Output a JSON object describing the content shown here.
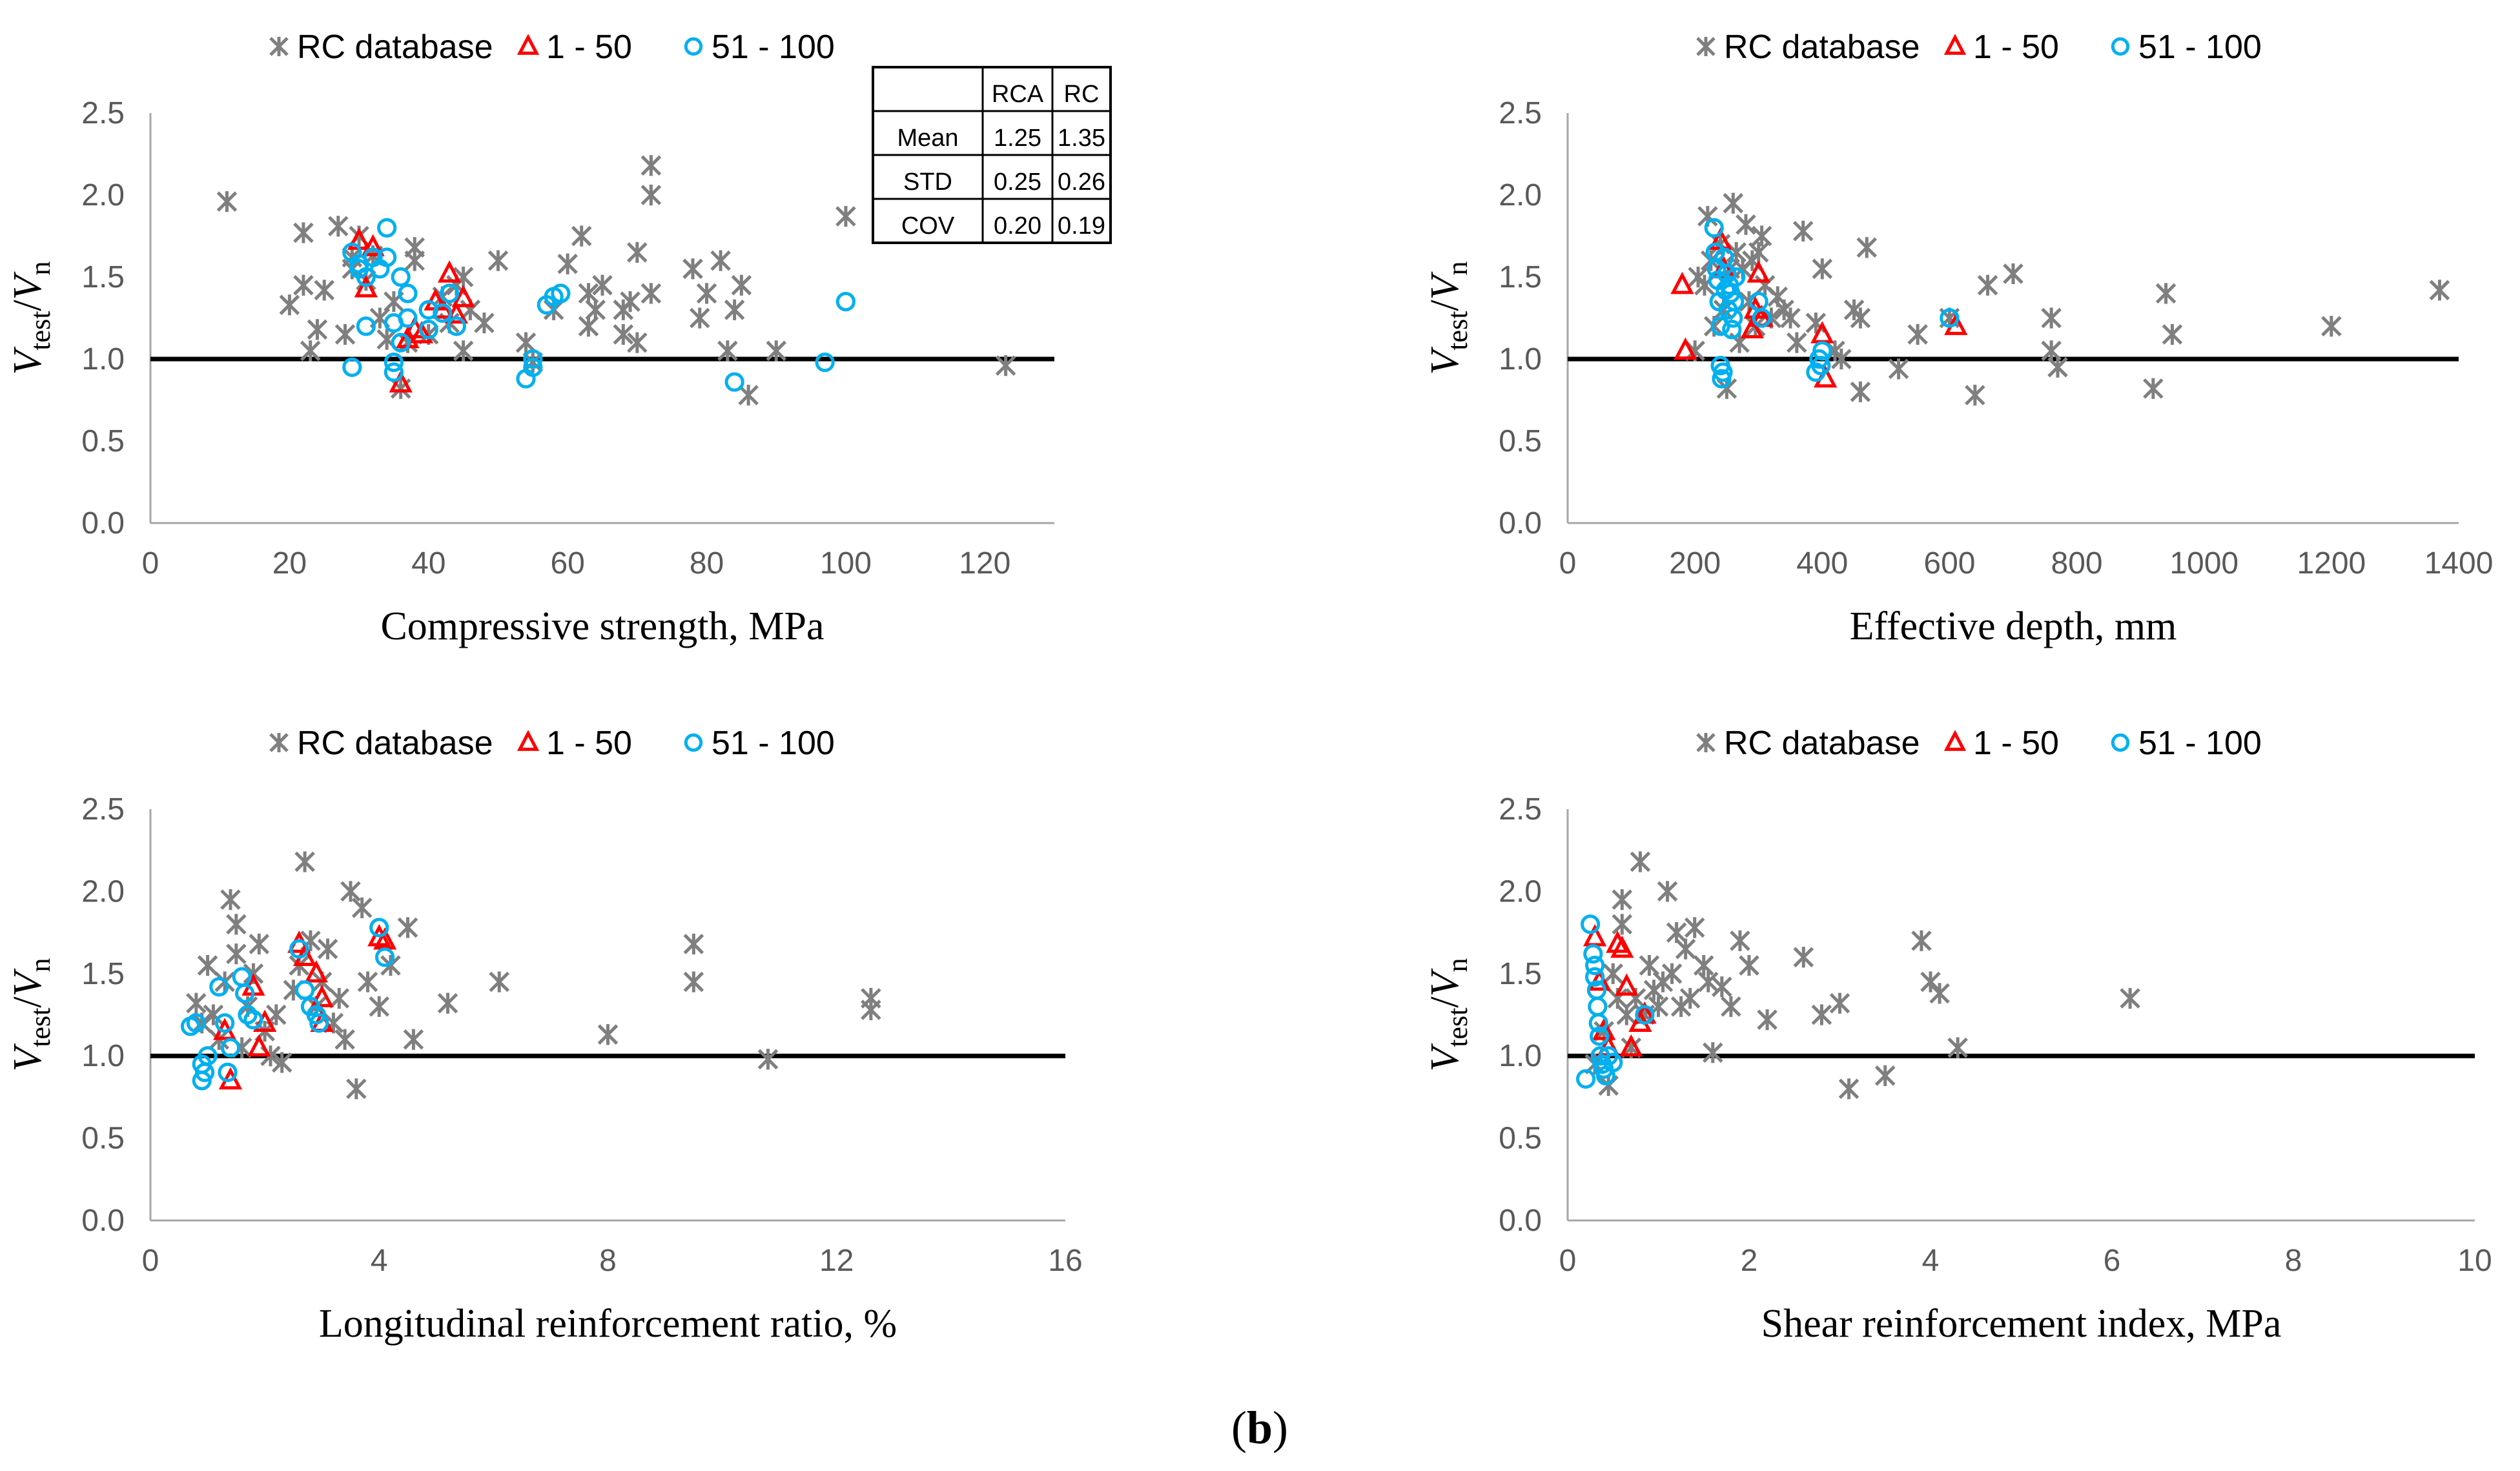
{
  "caption": {
    "prefix": "(",
    "letter": "b",
    "suffix": ")"
  },
  "colors": {
    "rc": "#7f7f7f",
    "rca_1_50": "#ff0000",
    "rca_51_100": "#00b0f0",
    "reference_line": "#000000"
  },
  "legend": {
    "rc": "RC database",
    "s1": "1 - 50",
    "s2": "51 - 100"
  },
  "ylabel": {
    "main": "V",
    "sub": "test",
    "sep": "/",
    "main2": "V",
    "sub2": "n"
  },
  "stats_table": {
    "headers": [
      "",
      "RCA",
      "RC"
    ],
    "rows": [
      {
        "label": "Mean",
        "rca": "1.25",
        "rc": "1.35"
      },
      {
        "label": "STD",
        "rca": "0.25",
        "rc": "0.26"
      },
      {
        "label": "COV",
        "rca": "0.20",
        "rc": "0.19"
      }
    ]
  },
  "chart_data": [
    {
      "type": "scatter",
      "xlabel": "Compressive strength, MPa",
      "xlim": [
        0,
        130
      ],
      "xticks": [
        0,
        20,
        40,
        60,
        80,
        100,
        120
      ],
      "ylim": [
        0,
        2.5
      ],
      "yticks": [
        0.0,
        0.5,
        1.0,
        1.5,
        2.0,
        2.5
      ],
      "reference_y": 1.0,
      "series": [
        {
          "name": "RC database",
          "marker": "asterisk",
          "x": [
            11,
            20,
            22,
            22,
            23,
            24,
            25,
            27,
            28,
            29,
            29,
            30,
            31,
            32,
            33,
            34,
            35,
            36,
            37,
            38,
            38,
            40,
            42,
            43,
            44,
            45,
            45,
            46,
            48,
            50,
            54,
            55,
            58,
            60,
            62,
            63,
            63,
            64,
            65,
            68,
            68,
            69,
            70,
            70,
            72,
            72,
            72,
            78,
            79,
            80,
            82,
            83,
            84,
            85,
            86,
            90,
            100,
            123
          ],
          "y": [
            1.96,
            1.33,
            1.45,
            1.77,
            1.05,
            1.18,
            1.42,
            1.81,
            1.15,
            1.62,
            1.55,
            1.75,
            1.48,
            1.63,
            1.25,
            1.12,
            1.35,
            0.82,
            1.1,
            1.6,
            1.68,
            1.15,
            1.38,
            1.22,
            1.45,
            1.05,
            1.5,
            1.3,
            1.22,
            1.6,
            1.1,
            0.98,
            1.3,
            1.58,
            1.75,
            1.4,
            1.2,
            1.3,
            1.45,
            1.3,
            1.15,
            1.35,
            1.65,
            1.1,
            1.4,
            2.18,
            2.0,
            1.55,
            1.25,
            1.4,
            1.6,
            1.05,
            1.3,
            1.45,
            0.78,
            1.05,
            1.87,
            0.96
          ]
        },
        {
          "name": "1 - 50",
          "marker": "triangle",
          "x": [
            30,
            31,
            32,
            36,
            37,
            38,
            39,
            41,
            42,
            43,
            44,
            45
          ],
          "y": [
            1.72,
            1.43,
            1.68,
            0.85,
            1.12,
            1.18,
            1.15,
            1.35,
            1.3,
            1.52,
            1.27,
            1.37
          ]
        },
        {
          "name": "51 - 100",
          "marker": "circle",
          "x": [
            29,
            29,
            30,
            30,
            31,
            31,
            32,
            33,
            34,
            34,
            35,
            35,
            35,
            36,
            36,
            37,
            37,
            40,
            40,
            42,
            43,
            44,
            54,
            55,
            55,
            57,
            58,
            59,
            84,
            97,
            100
          ],
          "y": [
            1.65,
            0.95,
            1.58,
            1.55,
            1.2,
            1.5,
            1.62,
            1.55,
            1.8,
            1.62,
            1.22,
            0.98,
            0.92,
            1.1,
            1.5,
            1.25,
            1.4,
            1.3,
            1.18,
            1.28,
            1.4,
            1.2,
            0.88,
            0.95,
            1.0,
            1.33,
            1.38,
            1.4,
            0.86,
            0.98,
            1.35
          ]
        }
      ]
    },
    {
      "type": "scatter",
      "xlabel": "Effective depth, mm",
      "xlim": [
        0,
        1400
      ],
      "xticks": [
        0,
        200,
        400,
        600,
        800,
        1000,
        1200,
        1400
      ],
      "ylim": [
        0,
        2.5
      ],
      "yticks": [
        0.0,
        0.5,
        1.0,
        1.5,
        2.0,
        2.5
      ],
      "reference_y": 1.0,
      "series": [
        {
          "name": "RC database",
          "marker": "asterisk",
          "x": [
            200,
            205,
            215,
            220,
            225,
            230,
            240,
            245,
            250,
            255,
            260,
            265,
            270,
            275,
            280,
            285,
            290,
            295,
            300,
            305,
            310,
            320,
            330,
            340,
            350,
            360,
            370,
            390,
            400,
            420,
            430,
            450,
            460,
            460,
            470,
            520,
            550,
            600,
            640,
            660,
            700,
            760,
            760,
            770,
            920,
            940,
            950,
            1200,
            1370
          ],
          "y": [
            1.05,
            1.5,
            1.45,
            1.87,
            1.6,
            1.2,
            1.7,
            1.3,
            0.82,
            1.55,
            1.95,
            1.65,
            1.1,
            1.55,
            1.82,
            1.35,
            1.6,
            1.2,
            1.65,
            1.75,
            1.45,
            1.25,
            1.38,
            1.3,
            1.25,
            1.1,
            1.78,
            1.22,
            1.55,
            1.05,
            1.0,
            1.3,
            1.25,
            0.8,
            1.68,
            0.94,
            1.15,
            1.25,
            0.78,
            1.45,
            1.52,
            1.25,
            1.05,
            0.95,
            0.82,
            1.4,
            1.15,
            1.2,
            1.42
          ]
        },
        {
          "name": "1 - 50",
          "marker": "triangle",
          "x": [
            180,
            185,
            240,
            245,
            290,
            295,
            300,
            305,
            400,
            405,
            610
          ],
          "y": [
            1.45,
            1.05,
            1.72,
            1.55,
            1.18,
            1.3,
            1.52,
            1.25,
            1.15,
            0.88,
            1.2
          ]
        },
        {
          "name": "51 - 100",
          "marker": "circle",
          "x": [
            230,
            232,
            234,
            236,
            238,
            240,
            240,
            242,
            244,
            246,
            248,
            250,
            252,
            254,
            256,
            258,
            260,
            262,
            264,
            300,
            305,
            390,
            395,
            398,
            400,
            600
          ],
          "y": [
            1.8,
            1.65,
            1.55,
            1.48,
            1.35,
            1.2,
            0.96,
            0.88,
            0.92,
            1.62,
            1.42,
            1.52,
            1.3,
            1.45,
            1.4,
            1.18,
            1.25,
            1.35,
            1.5,
            1.35,
            1.25,
            0.92,
            1.0,
            0.96,
            1.05,
            1.25
          ]
        }
      ]
    },
    {
      "type": "scatter",
      "xlabel": "Longitudinal reinforcement ratio, %",
      "xlim": [
        0,
        16
      ],
      "xticks": [
        0,
        4,
        8,
        12,
        16
      ],
      "ylim": [
        0,
        2.5
      ],
      "yticks": [
        0.0,
        0.5,
        1.0,
        1.5,
        2.0,
        2.5
      ],
      "reference_y": 1.0,
      "series": [
        {
          "name": "RC database",
          "marker": "asterisk",
          "x": [
            0.8,
            0.9,
            1.0,
            1.1,
            1.2,
            1.3,
            1.4,
            1.5,
            1.5,
            1.6,
            1.7,
            1.8,
            1.9,
            2.0,
            2.1,
            2.2,
            2.3,
            2.5,
            2.6,
            2.7,
            2.8,
            2.9,
            3.0,
            3.1,
            3.2,
            3.3,
            3.4,
            3.5,
            3.6,
            3.7,
            3.8,
            4.0,
            4.2,
            4.5,
            4.6,
            5.2,
            6.1,
            8.0,
            9.5,
            9.5,
            10.8,
            12.6,
            12.6
          ],
          "y": [
            1.32,
            1.2,
            1.55,
            1.25,
            1.1,
            1.45,
            1.95,
            1.8,
            1.62,
            1.05,
            1.3,
            1.5,
            1.68,
            1.15,
            1.0,
            1.25,
            0.96,
            1.4,
            1.55,
            2.18,
            1.7,
            1.3,
            1.45,
            1.65,
            1.2,
            1.35,
            1.1,
            2.0,
            0.8,
            1.9,
            1.45,
            1.3,
            1.55,
            1.78,
            1.1,
            1.32,
            1.45,
            1.13,
            1.45,
            1.68,
            0.98,
            1.35,
            1.28
          ]
        },
        {
          "name": "1 - 50",
          "marker": "triangle",
          "x": [
            1.3,
            1.4,
            1.8,
            1.9,
            2.0,
            2.6,
            2.7,
            2.9,
            3.0,
            3.0,
            4.0,
            4.1
          ],
          "y": [
            1.15,
            0.85,
            1.42,
            1.05,
            1.2,
            1.68,
            1.6,
            1.5,
            1.2,
            1.35,
            1.72,
            1.7
          ]
        },
        {
          "name": "51 - 100",
          "marker": "circle",
          "x": [
            0.7,
            0.8,
            0.9,
            0.9,
            0.95,
            1.0,
            1.2,
            1.3,
            1.35,
            1.4,
            1.6,
            1.65,
            1.7,
            1.8,
            2.6,
            2.7,
            2.8,
            2.9,
            2.95,
            4.0,
            4.1
          ],
          "y": [
            1.18,
            1.2,
            0.85,
            0.95,
            0.9,
            1.0,
            1.42,
            1.2,
            0.9,
            1.05,
            1.48,
            1.38,
            1.25,
            1.22,
            1.65,
            1.4,
            1.3,
            1.25,
            1.2,
            1.78,
            1.6
          ]
        }
      ]
    },
    {
      "type": "scatter",
      "xlabel": "Shear reinforcement index, MPa",
      "xlim": [
        0,
        10
      ],
      "xticks": [
        0,
        2,
        4,
        6,
        8,
        10
      ],
      "ylim": [
        0,
        2.5
      ],
      "yticks": [
        0.0,
        0.5,
        1.0,
        1.5,
        2.0,
        2.5
      ],
      "reference_y": 1.0,
      "series": [
        {
          "name": "RC database",
          "marker": "asterisk",
          "x": [
            0.3,
            0.4,
            0.45,
            0.5,
            0.55,
            0.6,
            0.6,
            0.65,
            0.7,
            0.75,
            0.8,
            0.85,
            0.9,
            0.95,
            1.0,
            1.05,
            1.1,
            1.15,
            1.2,
            1.25,
            1.3,
            1.35,
            1.4,
            1.5,
            1.55,
            1.6,
            1.7,
            1.8,
            1.9,
            2.0,
            2.2,
            2.6,
            2.8,
            3.0,
            3.1,
            3.5,
            3.9,
            4.0,
            4.1,
            4.3,
            6.2
          ],
          "y": [
            0.95,
            1.15,
            0.82,
            1.5,
            1.35,
            1.95,
            1.8,
            1.25,
            1.05,
            1.35,
            2.18,
            1.25,
            1.55,
            1.4,
            1.3,
            1.45,
            2.0,
            1.5,
            1.75,
            1.3,
            1.65,
            1.35,
            1.78,
            1.55,
            1.45,
            1.02,
            1.42,
            1.3,
            1.7,
            1.55,
            1.22,
            1.6,
            1.25,
            1.32,
            0.8,
            0.88,
            1.7,
            1.45,
            1.38,
            1.05,
            1.35
          ]
        },
        {
          "name": "1 - 50",
          "marker": "triangle",
          "x": [
            0.3,
            0.35,
            0.4,
            0.45,
            0.55,
            0.6,
            0.65,
            0.7,
            0.8,
            0.85
          ],
          "y": [
            1.72,
            1.45,
            1.15,
            1.05,
            1.68,
            1.65,
            1.42,
            1.05,
            1.2,
            1.25
          ]
        },
        {
          "name": "51 - 100",
          "marker": "circle",
          "x": [
            0.2,
            0.25,
            0.28,
            0.3,
            0.3,
            0.32,
            0.33,
            0.34,
            0.35,
            0.36,
            0.38,
            0.4,
            0.42,
            0.45,
            0.5,
            0.85
          ],
          "y": [
            0.86,
            1.8,
            1.62,
            1.55,
            1.48,
            1.4,
            1.3,
            1.2,
            1.12,
            1.0,
            0.95,
            0.92,
            0.88,
            1.0,
            0.96,
            1.25
          ]
        }
      ]
    }
  ]
}
